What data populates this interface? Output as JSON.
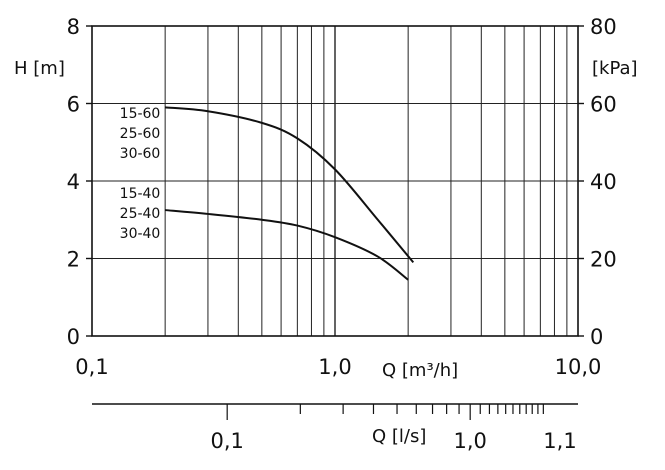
{
  "chart_data": {
    "type": "line",
    "x_scale": "log",
    "grid": true,
    "left_axis": {
      "label": "H [m]",
      "ylim": [
        0,
        8
      ],
      "ticks": [
        "0",
        "2",
        "4",
        "6",
        "8"
      ]
    },
    "right_axis": {
      "label": "[kPa]",
      "ylim": [
        0,
        80
      ],
      "ticks": [
        "0",
        "20",
        "40",
        "60",
        "80"
      ]
    },
    "x_axis_flow_m3h": {
      "label": "Q [m³/h]",
      "xlim": [
        0.1,
        10.0
      ],
      "ticks": [
        "0,1",
        "1,0",
        "10,0"
      ]
    },
    "x_axis_flow_ls": {
      "label": "Q [l/s]",
      "ticks": [
        "0,1",
        "1,0",
        "1,1"
      ]
    },
    "series": [
      {
        "labels": [
          "15-60",
          "25-60",
          "30-60"
        ],
        "x": [
          0.2,
          0.3,
          0.5,
          0.7,
          1.0,
          1.5,
          2.1
        ],
        "y": [
          5.9,
          5.8,
          5.5,
          5.1,
          4.3,
          3.0,
          1.9
        ]
      },
      {
        "labels": [
          "15-40",
          "25-40",
          "30-40"
        ],
        "x": [
          0.2,
          0.3,
          0.5,
          0.7,
          1.0,
          1.5,
          2.0
        ],
        "y": [
          3.25,
          3.15,
          3.0,
          2.85,
          2.55,
          2.05,
          1.45
        ]
      }
    ]
  }
}
